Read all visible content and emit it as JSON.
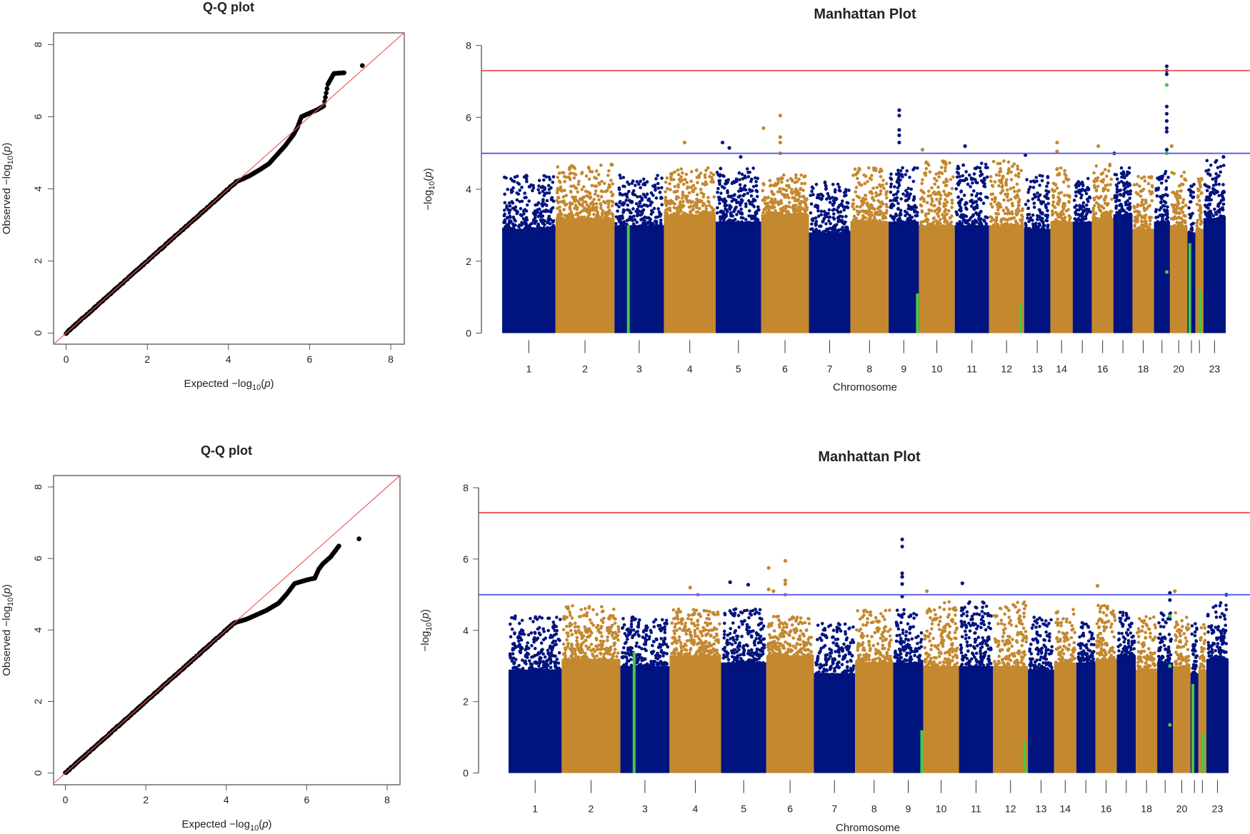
{
  "chart_data": [
    {
      "type": "scatter",
      "subtype": "qq",
      "title": "Q-Q plot",
      "xlabel": {
        "prefix": "Expected",
        "func": "−log",
        "sub": "10",
        "arg": "p"
      },
      "ylabel": {
        "prefix": "Observed",
        "func": "−log",
        "sub": "10",
        "arg": "p"
      },
      "xlim": [
        0,
        8
      ],
      "ylim": [
        0,
        8
      ],
      "xticks": [
        "0",
        "2",
        "4",
        "6",
        "8"
      ],
      "yticks": [
        "0",
        "2",
        "4",
        "6",
        "8"
      ],
      "reference_line": {
        "slope": 1,
        "intercept": 0,
        "color": "#e8605c"
      },
      "point_color": "#000000",
      "diagonal_until": 4.2,
      "tail": [
        [
          4.5,
          4.35
        ],
        [
          4.8,
          4.55
        ],
        [
          5.0,
          4.7
        ],
        [
          5.2,
          4.95
        ],
        [
          5.4,
          5.2
        ],
        [
          5.5,
          5.35
        ],
        [
          5.6,
          5.5
        ],
        [
          5.7,
          5.7
        ],
        [
          5.8,
          6.0
        ],
        [
          6.0,
          6.1
        ],
        [
          6.2,
          6.2
        ],
        [
          6.35,
          6.3
        ],
        [
          6.45,
          6.9
        ],
        [
          6.6,
          7.2
        ],
        [
          6.85,
          7.22
        ],
        [
          7.3,
          7.42
        ]
      ]
    },
    {
      "type": "scatter",
      "subtype": "manhattan",
      "title": "Manhattan Plot",
      "xlabel": "Chromosome",
      "ylabel": {
        "func": "−log",
        "sub": "10",
        "arg": "p"
      },
      "ylim": [
        0,
        8
      ],
      "yticks": [
        "0",
        "2",
        "4",
        "6",
        "8"
      ],
      "chromosome_labels": [
        "1",
        "2",
        "3",
        "4",
        "5",
        "6",
        "7",
        "8",
        "9",
        "10",
        "11",
        "12",
        "13",
        "14",
        "",
        "16",
        "",
        "18",
        "",
        "20",
        "",
        "",
        "23"
      ],
      "colors": {
        "odd": "#00137f",
        "even": "#c4882f",
        "highlight": "#44c944"
      },
      "thresholds": [
        {
          "value": 7.3,
          "color": "#ee6060"
        },
        {
          "value": 5.0,
          "color": "#6060f0"
        }
      ],
      "top_hits": [
        [
          4,
          0.4,
          5.3
        ],
        [
          5,
          0.15,
          5.3
        ],
        [
          5,
          0.3,
          5.15
        ],
        [
          5,
          0.55,
          4.9
        ],
        [
          6,
          0.05,
          5.7
        ],
        [
          6,
          0.4,
          6.05
        ],
        [
          6,
          0.4,
          5.45
        ],
        [
          6,
          0.4,
          5.3
        ],
        [
          6,
          0.4,
          5.0
        ],
        [
          9,
          0.35,
          6.2
        ],
        [
          9,
          0.35,
          6.05
        ],
        [
          9,
          0.35,
          5.65
        ],
        [
          9,
          0.35,
          5.5
        ],
        [
          9,
          0.35,
          5.3
        ],
        [
          10,
          0.1,
          5.1
        ],
        [
          11,
          0.3,
          5.2
        ],
        [
          13,
          0.05,
          4.95
        ],
        [
          14,
          0.3,
          5.3
        ],
        [
          14,
          0.3,
          5.05
        ],
        [
          16,
          0.3,
          5.2
        ],
        [
          17,
          0.05,
          5.0
        ],
        [
          19,
          0.8,
          7.42
        ],
        [
          19,
          0.8,
          7.3
        ],
        [
          19,
          0.8,
          7.2
        ],
        [
          19,
          0.8,
          6.3
        ],
        [
          19,
          0.8,
          6.1
        ],
        [
          19,
          0.8,
          5.9
        ],
        [
          19,
          0.8,
          5.7
        ],
        [
          19,
          0.8,
          5.6
        ],
        [
          19,
          0.8,
          5.1
        ],
        [
          20,
          0.1,
          5.2
        ],
        [
          23,
          0.9,
          4.9
        ]
      ],
      "highlighted_snps": [
        [
          3,
          0.28,
          0,
          3.0
        ],
        [
          9,
          0.95,
          0,
          1.1
        ],
        [
          12,
          0.9,
          0,
          0.8
        ],
        [
          19,
          0.8,
          6.9,
          6.9
        ],
        [
          19,
          0.8,
          5.0,
          5.0
        ],
        [
          19,
          0.8,
          1.7,
          1.7
        ],
        [
          21,
          0.3,
          0,
          2.5
        ],
        [
          22,
          0.6,
          0,
          1.2
        ]
      ]
    },
    {
      "type": "scatter",
      "subtype": "qq",
      "title": "Q-Q plot",
      "xlabel": {
        "prefix": "Expected",
        "func": "−log",
        "sub": "10",
        "arg": "p"
      },
      "ylabel": {
        "prefix": "Observed",
        "func": "−log",
        "sub": "10",
        "arg": "p"
      },
      "xlim": [
        0,
        8
      ],
      "ylim": [
        0,
        8
      ],
      "xticks": [
        "0",
        "2",
        "4",
        "6",
        "8"
      ],
      "yticks": [
        "0",
        "2",
        "4",
        "6",
        "8"
      ],
      "reference_line": {
        "slope": 1,
        "intercept": 0,
        "color": "#e8605c"
      },
      "point_color": "#000000",
      "diagonal_until": 4.2,
      "tail": [
        [
          4.5,
          4.3
        ],
        [
          4.8,
          4.45
        ],
        [
          5.0,
          4.55
        ],
        [
          5.3,
          4.75
        ],
        [
          5.5,
          5.0
        ],
        [
          5.7,
          5.3
        ],
        [
          6.0,
          5.4
        ],
        [
          6.2,
          5.45
        ],
        [
          6.3,
          5.7
        ],
        [
          6.4,
          5.85
        ],
        [
          6.6,
          6.05
        ],
        [
          6.8,
          6.35
        ],
        [
          7.3,
          6.55
        ]
      ]
    },
    {
      "type": "scatter",
      "subtype": "manhattan",
      "title": "Manhattan Plot",
      "xlabel": "Chromosome",
      "ylabel": {
        "func": "−log",
        "sub": "10",
        "arg": "p"
      },
      "ylim": [
        0,
        8
      ],
      "yticks": [
        "0",
        "2",
        "4",
        "6",
        "8"
      ],
      "chromosome_labels": [
        "1",
        "2",
        "3",
        "4",
        "5",
        "6",
        "7",
        "8",
        "9",
        "10",
        "11",
        "12",
        "13",
        "14",
        "",
        "16",
        "",
        "18",
        "",
        "20",
        "",
        "",
        "23"
      ],
      "colors": {
        "odd": "#00137f",
        "even": "#c4882f",
        "highlight": "#44c944"
      },
      "thresholds": [
        {
          "value": 7.3,
          "color": "#ee6060"
        },
        {
          "value": 5.0,
          "color": "#6060f0"
        }
      ],
      "top_hits": [
        [
          4,
          0.4,
          5.2
        ],
        [
          4,
          0.55,
          5.0
        ],
        [
          5,
          0.2,
          5.35
        ],
        [
          5,
          0.6,
          5.28
        ],
        [
          6,
          0.05,
          5.75
        ],
        [
          6,
          0.05,
          5.15
        ],
        [
          6,
          0.15,
          5.1
        ],
        [
          6,
          0.4,
          5.95
        ],
        [
          6,
          0.4,
          5.4
        ],
        [
          6,
          0.4,
          5.3
        ],
        [
          6,
          0.4,
          5.0
        ],
        [
          9,
          0.3,
          6.55
        ],
        [
          9,
          0.3,
          6.35
        ],
        [
          9,
          0.3,
          5.6
        ],
        [
          9,
          0.3,
          5.5
        ],
        [
          9,
          0.3,
          5.3
        ],
        [
          9,
          0.3,
          4.95
        ],
        [
          10,
          0.1,
          5.1
        ],
        [
          11,
          0.1,
          5.32
        ],
        [
          16,
          0.1,
          5.25
        ],
        [
          19,
          0.8,
          5.05
        ],
        [
          19,
          0.8,
          4.85
        ],
        [
          20,
          0.1,
          5.1
        ],
        [
          23,
          0.9,
          5.0
        ]
      ],
      "highlighted_snps": [
        [
          3,
          0.28,
          0,
          3.4
        ],
        [
          9,
          0.95,
          0,
          1.2
        ],
        [
          12,
          0.9,
          0,
          0.9
        ],
        [
          19,
          0.8,
          4.4,
          4.4
        ],
        [
          19,
          0.8,
          3.0,
          3.0
        ],
        [
          19,
          0.8,
          1.35,
          1.35
        ],
        [
          21,
          0.3,
          0,
          2.5
        ],
        [
          22,
          0.6,
          0,
          1.1
        ]
      ]
    }
  ]
}
